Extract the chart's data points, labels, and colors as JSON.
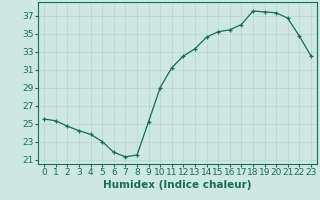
{
  "x": [
    0,
    1,
    2,
    3,
    4,
    5,
    6,
    7,
    8,
    9,
    10,
    11,
    12,
    13,
    14,
    15,
    16,
    17,
    18,
    19,
    20,
    21,
    22,
    23
  ],
  "y": [
    25.5,
    25.3,
    24.7,
    24.2,
    23.8,
    23.0,
    21.8,
    21.3,
    21.5,
    25.2,
    29.0,
    31.2,
    32.5,
    33.3,
    34.6,
    35.2,
    35.4,
    36.0,
    37.5,
    37.4,
    37.3,
    36.7,
    34.7,
    32.5
  ],
  "xlabel": "Humidex (Indice chaleur)",
  "ylim": [
    20.5,
    38.5
  ],
  "xlim": [
    -0.5,
    23.5
  ],
  "yticks": [
    21,
    23,
    25,
    27,
    29,
    31,
    33,
    35,
    37
  ],
  "xticks": [
    0,
    1,
    2,
    3,
    4,
    5,
    6,
    7,
    8,
    9,
    10,
    11,
    12,
    13,
    14,
    15,
    16,
    17,
    18,
    19,
    20,
    21,
    22,
    23
  ],
  "line_color": "#1a6b5a",
  "marker": "+",
  "bg_color": "#cce8e0",
  "grid_color": "#b8d4cc",
  "tick_label_fontsize": 6.5,
  "xlabel_fontsize": 7.5
}
